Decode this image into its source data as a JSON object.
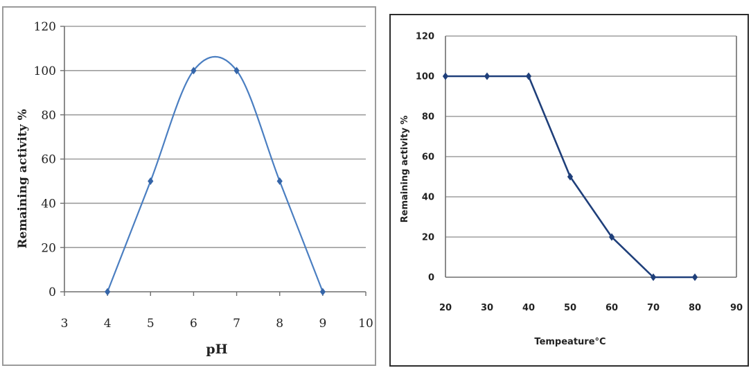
{
  "chart_data": [
    {
      "type": "line",
      "title": "",
      "xlabel": "pH",
      "ylabel": "Remaining activity %",
      "xlim": [
        3,
        10
      ],
      "ylim": [
        0,
        120
      ],
      "xticks": [
        3,
        4,
        5,
        6,
        7,
        8,
        9,
        10
      ],
      "yticks": [
        0,
        20,
        40,
        60,
        80,
        100,
        120
      ],
      "grid": true,
      "smooth": true,
      "series": [
        {
          "x": [
            4,
            5,
            6,
            7,
            8,
            9
          ],
          "y": [
            0,
            50,
            100,
            100,
            50,
            0
          ]
        }
      ],
      "line_color": "#4a7ec1",
      "marker_color": "#3565a8"
    },
    {
      "type": "line",
      "title": "",
      "xlabel": "Tempeature°C",
      "ylabel": "Remaining activity %",
      "xlim": [
        20,
        90
      ],
      "ylim": [
        0,
        120
      ],
      "xticks": [
        20,
        30,
        40,
        50,
        60,
        70,
        80,
        90
      ],
      "yticks": [
        0,
        20,
        40,
        60,
        80,
        100,
        120
      ],
      "grid": true,
      "smooth": false,
      "series": [
        {
          "x": [
            20,
            30,
            40,
            50,
            60,
            70,
            80
          ],
          "y": [
            100,
            100,
            100,
            50,
            20,
            0,
            0
          ]
        }
      ],
      "line_color": "#1f3f7a",
      "marker_color": "#1f3f7a"
    }
  ]
}
